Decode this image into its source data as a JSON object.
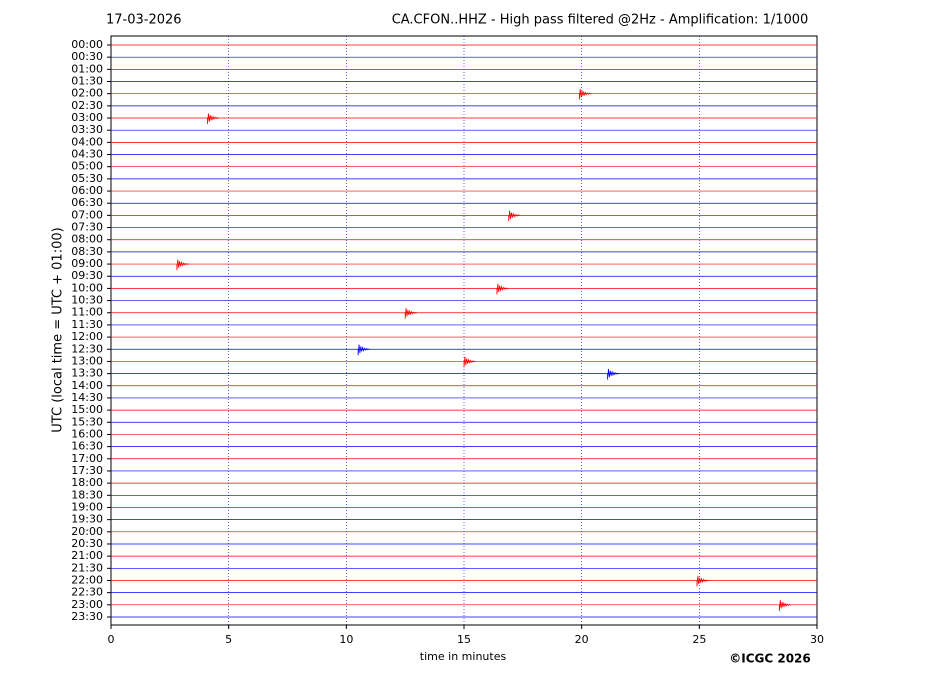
{
  "chart_data": {
    "type": "helicorder",
    "date": "17-03-2026",
    "title": "CA.CFON..HHZ - High pass filtered @2Hz - Amplification: 1/1000",
    "ylabel": "UTC (local time = UTC + 01:00)",
    "xlabel": "time in minutes",
    "credit": "©ICGC 2026",
    "categories": [
      "00:00",
      "00:30",
      "01:00",
      "01:30",
      "02:00",
      "02:30",
      "03:00",
      "03:30",
      "04:00",
      "04:30",
      "05:00",
      "05:30",
      "06:00",
      "06:30",
      "07:00",
      "07:30",
      "08:00",
      "08:30",
      "09:00",
      "09:30",
      "10:00",
      "10:30",
      "11:00",
      "11:30",
      "12:00",
      "12:30",
      "13:00",
      "13:30",
      "14:00",
      "14:30",
      "15:00",
      "15:30",
      "16:00",
      "16:30",
      "17:00",
      "17:30",
      "18:00",
      "18:30",
      "19:00",
      "19:30",
      "20:00",
      "20:30",
      "21:00",
      "21:30",
      "22:00",
      "22:30",
      "23:00",
      "23:30"
    ],
    "colors": [
      "#ff0000",
      "#0000ff"
    ],
    "xlim": [
      0,
      30
    ],
    "xticks": [
      0,
      5,
      10,
      15,
      20,
      25,
      30
    ],
    "grid": true,
    "events": [
      {
        "row": "02:00",
        "x": 19.9
      },
      {
        "row": "03:00",
        "x": 4.1
      },
      {
        "row": "07:00",
        "x": 16.9
      },
      {
        "row": "09:00",
        "x": 2.8
      },
      {
        "row": "10:00",
        "x": 16.4
      },
      {
        "row": "11:00",
        "x": 12.5
      },
      {
        "row": "12:30",
        "x": 10.5
      },
      {
        "row": "13:00",
        "x": 15.0
      },
      {
        "row": "13:30",
        "x": 21.1
      },
      {
        "row": "22:00",
        "x": 24.9
      },
      {
        "row": "23:00",
        "x": 28.4
      }
    ]
  }
}
